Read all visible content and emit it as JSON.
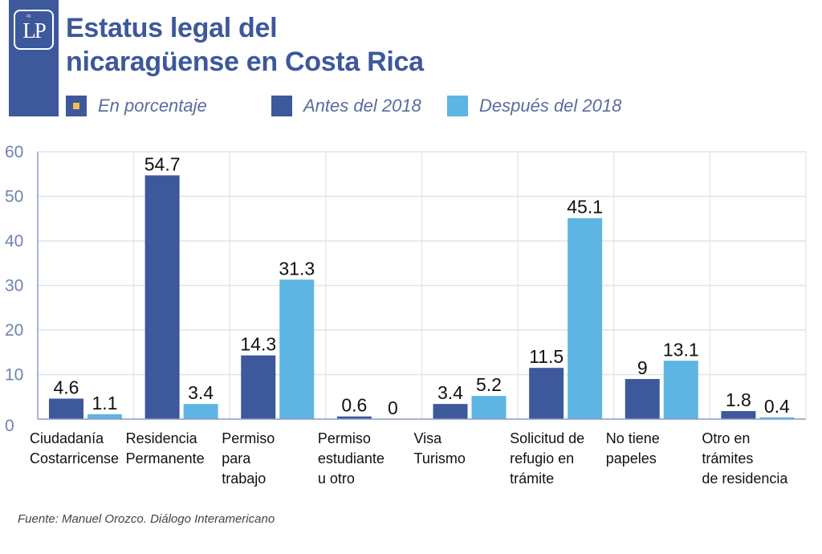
{
  "header": {
    "logo_text": "LP",
    "title_line1": "Estatus legal del",
    "title_line2": "nicaragüense en Costa Rica"
  },
  "legend": [
    {
      "label": "En porcentaje",
      "color": "#3d589b",
      "marker": "#f2c14e"
    },
    {
      "label": "Antes del 2018",
      "color": "#3d589b"
    },
    {
      "label": "Después del 2018",
      "color": "#5eb5e3"
    }
  ],
  "source": "Fuente: Manuel Orozco. Diálogo Interamericano",
  "colors": {
    "brand": "#3d589b",
    "before": "#3d589b",
    "after": "#5eb5e3",
    "grid": "#dde4ee",
    "axis": "#8c9cc4"
  },
  "chart_data": {
    "type": "bar",
    "title": "Estatus legal del nicaragüense en Costa Rica",
    "subtitle": "En porcentaje",
    "xlabel": "",
    "ylabel": "",
    "ylim": [
      0,
      60
    ],
    "yticks": [
      0,
      10,
      20,
      30,
      40,
      50,
      60
    ],
    "grid": true,
    "legend_position": "top",
    "categories": [
      [
        "Ciudadanía",
        "Costarricense"
      ],
      [
        "Residencia",
        "Permanente"
      ],
      [
        "Permiso",
        "para",
        "trabajo"
      ],
      [
        "Permiso",
        "estudiante",
        "u otro"
      ],
      [
        "Visa",
        "Turismo"
      ],
      [
        "Solicitud de",
        "refugio en",
        "trámite"
      ],
      [
        "No tiene",
        "papeles"
      ],
      [
        "Otro en",
        "trámites",
        "de residencia"
      ]
    ],
    "series": [
      {
        "name": "Antes del 2018",
        "values": [
          4.6,
          54.7,
          14.3,
          0.6,
          3.4,
          11.5,
          9,
          1.8
        ]
      },
      {
        "name": "Después del 2018",
        "values": [
          1.1,
          3.4,
          31.3,
          0,
          5.2,
          45.1,
          13.1,
          0.4
        ]
      }
    ]
  }
}
